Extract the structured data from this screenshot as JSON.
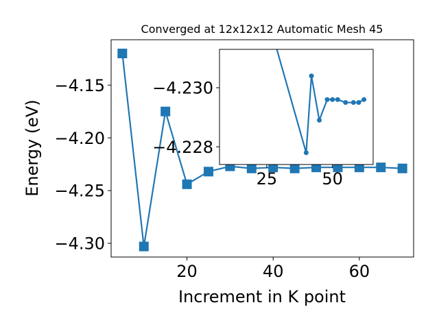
{
  "colors": {
    "series": "#1f77b4",
    "axes": "#000000",
    "background": "#ffffff"
  },
  "chart_data": [
    {
      "id": "main",
      "type": "line",
      "title": "Converged at 12x12x12 Automatic Mesh 45",
      "xlabel": "Increment in K point",
      "ylabel": "Energy (eV)",
      "xlim": [
        2.4,
        72.6
      ],
      "ylim": [
        -4.313,
        -4.107
      ],
      "xticks": [
        20,
        40,
        60
      ],
      "xtick_labels": [
        "20",
        "40",
        "60"
      ],
      "yticks": [
        -4.15,
        -4.2,
        -4.25,
        -4.3
      ],
      "ytick_labels": [
        "−4.15",
        "−4.20",
        "−4.25",
        "−4.30"
      ],
      "marker": "square",
      "series": [
        {
          "x": [
            5,
            10,
            15,
            20,
            25,
            30,
            35,
            40,
            45,
            50,
            55,
            60,
            65,
            70
          ],
          "y": [
            -4.12,
            -4.303,
            -4.175,
            -4.244,
            -4.232,
            -4.227,
            -4.229,
            -4.228,
            -4.229,
            -4.228,
            -4.228,
            -4.228,
            -4.228,
            -4.229
          ]
        }
      ]
    },
    {
      "id": "inset",
      "type": "line",
      "xlim": [
        7.0,
        65.5
      ],
      "ylim": [
        -4.2274,
        -4.2313
      ],
      "xticks": [
        25,
        50
      ],
      "xtick_labels": [
        "25",
        "50"
      ],
      "yticks": [
        -4.23,
        -4.228
      ],
      "ytick_labels": [
        "−4.230",
        "−4.228"
      ],
      "marker": "circle",
      "series": [
        {
          "x": [
            25,
            40,
            42,
            45,
            48,
            50,
            52,
            55,
            58,
            60,
            62
          ],
          "y": [
            -4.2325,
            -4.2278,
            -4.2304,
            -4.2289,
            -4.2296,
            -4.2296,
            -4.2296,
            -4.2295,
            -4.2295,
            -4.2295,
            -4.2296
          ]
        }
      ]
    }
  ]
}
